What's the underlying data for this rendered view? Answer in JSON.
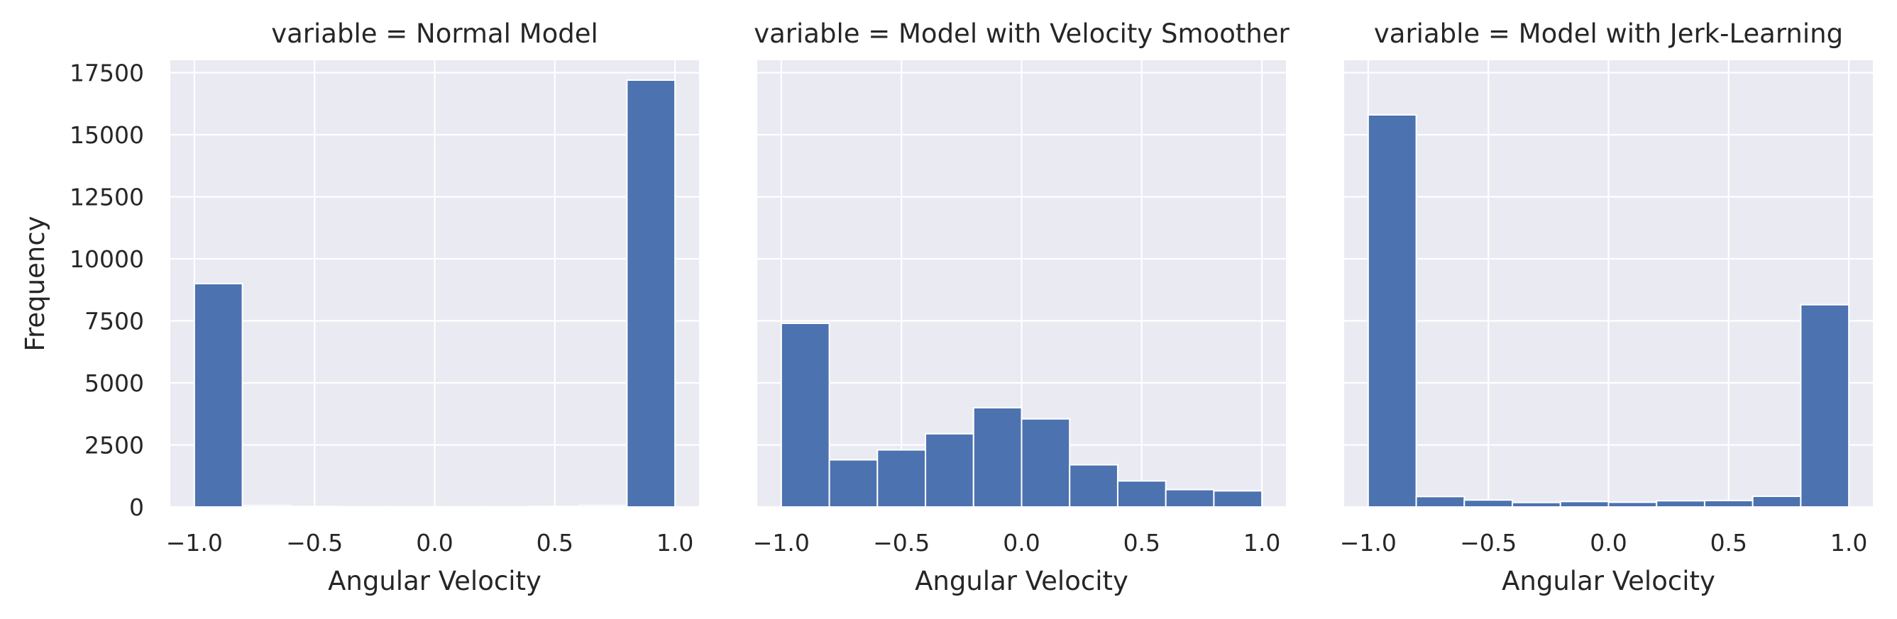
{
  "chart_data": [
    {
      "type": "bar",
      "title": "variable = Normal Model",
      "xlabel": "Angular Velocity",
      "ylabel": "Frequency",
      "xlim": [
        -1.1,
        1.1
      ],
      "ylim": [
        0,
        18000
      ],
      "xticks": [
        "−1.0",
        "−0.5",
        "0.0",
        "0.5",
        "1.0"
      ],
      "xtick_values": [
        -1.0,
        -0.5,
        0.0,
        0.5,
        1.0
      ],
      "yticks": [
        "0",
        "2500",
        "5000",
        "7500",
        "10000",
        "12500",
        "15000",
        "17500"
      ],
      "ytick_values": [
        0,
        2500,
        5000,
        7500,
        10000,
        12500,
        15000,
        17500
      ],
      "bin_edges": [
        -1.0,
        -0.8,
        -0.6,
        -0.4,
        -0.2,
        0.0,
        0.2,
        0.4,
        0.6,
        0.8,
        1.0
      ],
      "values": [
        9000,
        60,
        20,
        10,
        10,
        10,
        10,
        20,
        60,
        17200
      ],
      "grid": true
    },
    {
      "type": "bar",
      "title": "variable = Model with Velocity Smoother",
      "xlabel": "Angular Velocity",
      "ylabel": "",
      "xlim": [
        -1.1,
        1.1
      ],
      "ylim": [
        0,
        18000
      ],
      "xticks": [
        "−1.0",
        "−0.5",
        "0.0",
        "0.5",
        "1.0"
      ],
      "xtick_values": [
        -1.0,
        -0.5,
        0.0,
        0.5,
        1.0
      ],
      "yticks": [],
      "ytick_values": [
        0,
        2500,
        5000,
        7500,
        10000,
        12500,
        15000,
        17500
      ],
      "bin_edges": [
        -1.0,
        -0.8,
        -0.6,
        -0.4,
        -0.2,
        0.0,
        0.2,
        0.4,
        0.6,
        0.8,
        1.0
      ],
      "values": [
        7400,
        1900,
        2300,
        2950,
        4000,
        3550,
        1700,
        1050,
        700,
        650
      ],
      "grid": true
    },
    {
      "type": "bar",
      "title": "variable = Model with Jerk-Learning",
      "xlabel": "Angular Velocity",
      "ylabel": "",
      "xlim": [
        -1.1,
        1.1
      ],
      "ylim": [
        0,
        18000
      ],
      "xticks": [
        "−1.0",
        "−0.5",
        "0.0",
        "0.5",
        "1.0"
      ],
      "xtick_values": [
        -1.0,
        -0.5,
        0.0,
        0.5,
        1.0
      ],
      "yticks": [],
      "ytick_values": [
        0,
        2500,
        5000,
        7500,
        10000,
        12500,
        15000,
        17500
      ],
      "bin_edges": [
        -1.0,
        -0.8,
        -0.6,
        -0.4,
        -0.2,
        0.0,
        0.2,
        0.4,
        0.6,
        0.8,
        1.0
      ],
      "values": [
        15800,
        420,
        280,
        180,
        220,
        190,
        250,
        260,
        430,
        8150
      ],
      "grid": true
    }
  ],
  "colors": {
    "bar": "#4c72b0",
    "bar_edge": "#ffffff",
    "axes_bg": "#eaeaf2",
    "grid": "#ffffff",
    "text": "#262626"
  }
}
